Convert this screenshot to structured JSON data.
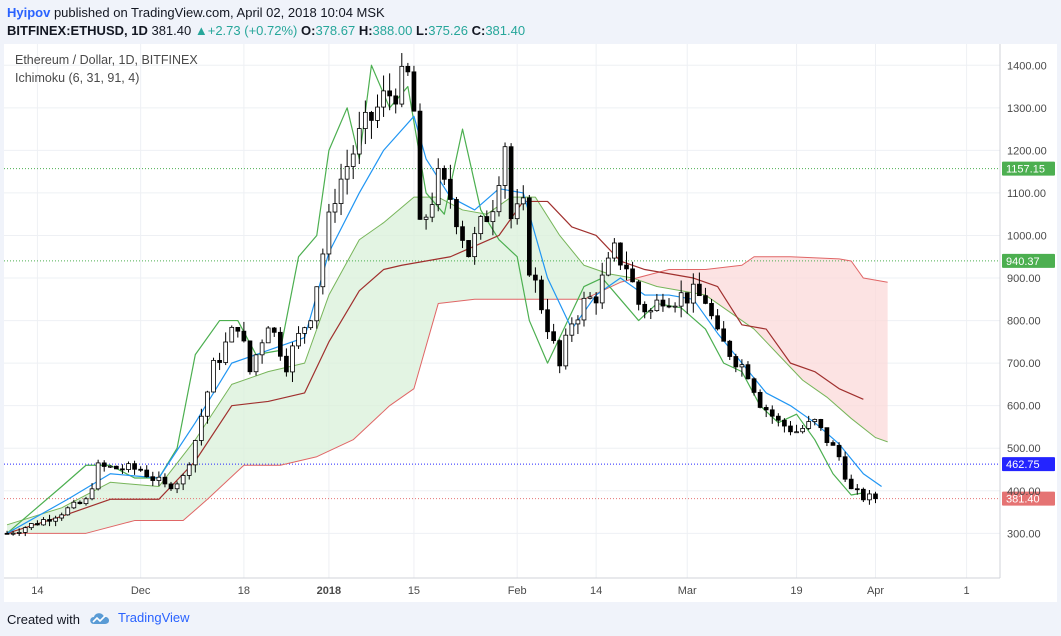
{
  "header": {
    "author": "Hyipov",
    "published_text": " published on TradingView.com, April 02, 2018 10:04 MSK",
    "symbol": "BITFINEX:ETHUSD, 1D",
    "last": "381.40",
    "change": "+2.73 (+0.72%)",
    "o_label": "O:",
    "o": "378.67",
    "h_label": "H:",
    "h": "388.00",
    "l_label": "L:",
    "l": "375.26",
    "c_label": "C:",
    "c": "381.40"
  },
  "legend": {
    "title": "Ethereum / Dollar, 1D, BITFINEX",
    "indicator": "Ichimoku (6, 31, 91, 4)"
  },
  "footer": {
    "created_with": "Created with",
    "brand": "TradingView"
  },
  "colors": {
    "tenkan": "#2196f3",
    "kijun": "#a0302e",
    "chikou": "#4caf50",
    "span_a": "#77b55a",
    "span_b": "#e06666",
    "cloud_bull": "#d9f0d9",
    "cloud_bear": "#fbdada",
    "level_green": "#4caf50",
    "level_blue": "#2424ff",
    "level_red": "#e57373"
  },
  "chart_data": {
    "type": "candlestick",
    "symbol": "ETHUSD",
    "timeframe": "1D",
    "y_ticks": [
      300,
      400,
      500,
      600,
      700,
      800,
      900,
      1000,
      1100,
      1200,
      1300,
      1400
    ],
    "y_tick_labels": [
      "300.00",
      "400.00",
      "500.00",
      "600.00",
      "700.00",
      "800.00",
      "900.00",
      "1000.00",
      "1100.00",
      "1200.00",
      "1300.00",
      "1400.00"
    ],
    "x_tick_labels": [
      {
        "label": "14",
        "day": 0,
        "bold": false
      },
      {
        "label": "Dec",
        "day": 17,
        "bold": false
      },
      {
        "label": "18",
        "day": 34,
        "bold": false
      },
      {
        "label": "2018",
        "day": 48,
        "bold": true
      },
      {
        "label": "15",
        "day": 62,
        "bold": false
      },
      {
        "label": "Feb",
        "day": 79,
        "bold": false
      },
      {
        "label": "14",
        "day": 92,
        "bold": false
      },
      {
        "label": "Mar",
        "day": 107,
        "bold": false
      },
      {
        "label": "19",
        "day": 125,
        "bold": false
      },
      {
        "label": "Apr",
        "day": 138,
        "bold": false
      },
      {
        "label": "1",
        "day": 153,
        "bold": false
      }
    ],
    "x_domain": [
      -5.5,
      158.5
    ],
    "y_domain": [
      195,
      1450
    ],
    "levels": [
      {
        "value": 1157.15,
        "label": "1157.15",
        "color": "#4caf50"
      },
      {
        "value": 940.37,
        "label": "940.37",
        "color": "#4caf50"
      },
      {
        "value": 462.75,
        "label": "462.75",
        "color": "#2424ff"
      },
      {
        "value": 381.4,
        "label": "381.40",
        "color": "#e57373"
      }
    ],
    "closes": [
      {
        "day": -5,
        "close": 300
      },
      {
        "day": 0,
        "close": 325
      },
      {
        "day": 8,
        "close": 375
      },
      {
        "day": 10,
        "close": 455
      },
      {
        "day": 17,
        "close": 450
      },
      {
        "day": 21,
        "close": 410
      },
      {
        "day": 24,
        "close": 430
      },
      {
        "day": 26,
        "close": 520
      },
      {
        "day": 29,
        "close": 690
      },
      {
        "day": 33,
        "close": 795
      },
      {
        "day": 35,
        "close": 680
      },
      {
        "day": 38,
        "close": 800
      },
      {
        "day": 41,
        "close": 700
      },
      {
        "day": 45,
        "close": 820
      },
      {
        "day": 49,
        "close": 1100
      },
      {
        "day": 53,
        "close": 1230
      },
      {
        "day": 57,
        "close": 1320
      },
      {
        "day": 61,
        "close": 1370
      },
      {
        "day": 62,
        "close": 1290
      },
      {
        "day": 63,
        "close": 1010
      },
      {
        "day": 66,
        "close": 1130
      },
      {
        "day": 68,
        "close": 1090
      },
      {
        "day": 71,
        "close": 960
      },
      {
        "day": 75,
        "close": 1080
      },
      {
        "day": 77,
        "close": 1220
      },
      {
        "day": 78,
        "close": 1040
      },
      {
        "day": 80,
        "close": 1060
      },
      {
        "day": 81,
        "close": 930
      },
      {
        "day": 84,
        "close": 790
      },
      {
        "day": 86,
        "close": 690
      },
      {
        "day": 88,
        "close": 800
      },
      {
        "day": 90,
        "close": 840
      },
      {
        "day": 92,
        "close": 860
      },
      {
        "day": 95,
        "close": 960
      },
      {
        "day": 97,
        "close": 930
      },
      {
        "day": 99,
        "close": 840
      },
      {
        "day": 101,
        "close": 820
      },
      {
        "day": 103,
        "close": 860
      },
      {
        "day": 105,
        "close": 855
      },
      {
        "day": 108,
        "close": 860
      },
      {
        "day": 110,
        "close": 850
      },
      {
        "day": 112,
        "close": 760
      },
      {
        "day": 115,
        "close": 710
      },
      {
        "day": 117,
        "close": 680
      },
      {
        "day": 119,
        "close": 610
      },
      {
        "day": 122,
        "close": 560
      },
      {
        "day": 125,
        "close": 540
      },
      {
        "day": 128,
        "close": 560
      },
      {
        "day": 130,
        "close": 520
      },
      {
        "day": 132,
        "close": 480
      },
      {
        "day": 134,
        "close": 400
      },
      {
        "day": 136,
        "close": 385
      },
      {
        "day": 138,
        "close": 381.4
      }
    ],
    "ichimoku": {
      "tenkan": [
        {
          "day": -5,
          "value": 300
        },
        {
          "day": 5,
          "value": 380
        },
        {
          "day": 12,
          "value": 440
        },
        {
          "day": 20,
          "value": 430
        },
        {
          "day": 26,
          "value": 560
        },
        {
          "day": 32,
          "value": 700
        },
        {
          "day": 38,
          "value": 730
        },
        {
          "day": 44,
          "value": 760
        },
        {
          "day": 48,
          "value": 960
        },
        {
          "day": 53,
          "value": 1100
        },
        {
          "day": 57,
          "value": 1200
        },
        {
          "day": 62,
          "value": 1280
        },
        {
          "day": 64,
          "value": 1180
        },
        {
          "day": 68,
          "value": 1090
        },
        {
          "day": 72,
          "value": 1060
        },
        {
          "day": 76,
          "value": 1110
        },
        {
          "day": 80,
          "value": 1100
        },
        {
          "day": 84,
          "value": 900
        },
        {
          "day": 88,
          "value": 780
        },
        {
          "day": 92,
          "value": 860
        },
        {
          "day": 96,
          "value": 900
        },
        {
          "day": 100,
          "value": 860
        },
        {
          "day": 104,
          "value": 860
        },
        {
          "day": 108,
          "value": 850
        },
        {
          "day": 112,
          "value": 770
        },
        {
          "day": 116,
          "value": 700
        },
        {
          "day": 120,
          "value": 630
        },
        {
          "day": 124,
          "value": 600
        },
        {
          "day": 128,
          "value": 560
        },
        {
          "day": 132,
          "value": 510
        },
        {
          "day": 136,
          "value": 440
        },
        {
          "day": 139,
          "value": 410
        }
      ],
      "kijun": [
        {
          "day": -5,
          "value": 300
        },
        {
          "day": 4,
          "value": 340
        },
        {
          "day": 12,
          "value": 380
        },
        {
          "day": 20,
          "value": 380
        },
        {
          "day": 26,
          "value": 470
        },
        {
          "day": 32,
          "value": 600
        },
        {
          "day": 38,
          "value": 610
        },
        {
          "day": 44,
          "value": 630
        },
        {
          "day": 48,
          "value": 750
        },
        {
          "day": 53,
          "value": 870
        },
        {
          "day": 57,
          "value": 920
        },
        {
          "day": 60,
          "value": 930
        },
        {
          "day": 68,
          "value": 950
        },
        {
          "day": 76,
          "value": 1000
        },
        {
          "day": 80,
          "value": 1080
        },
        {
          "day": 84,
          "value": 1080
        },
        {
          "day": 88,
          "value": 1020
        },
        {
          "day": 92,
          "value": 1000
        },
        {
          "day": 96,
          "value": 940
        },
        {
          "day": 100,
          "value": 920
        },
        {
          "day": 108,
          "value": 900
        },
        {
          "day": 112,
          "value": 880
        },
        {
          "day": 116,
          "value": 790
        },
        {
          "day": 120,
          "value": 780
        },
        {
          "day": 124,
          "value": 700
        },
        {
          "day": 128,
          "value": 680
        },
        {
          "day": 132,
          "value": 640
        },
        {
          "day": 136,
          "value": 615
        }
      ],
      "chikou": [
        {
          "day": -5,
          "value": 300
        },
        {
          "day": 4,
          "value": 410
        },
        {
          "day": 8,
          "value": 460
        },
        {
          "day": 12,
          "value": 460
        },
        {
          "day": 16,
          "value": 430
        },
        {
          "day": 20,
          "value": 430
        },
        {
          "day": 23,
          "value": 500
        },
        {
          "day": 26,
          "value": 720
        },
        {
          "day": 30,
          "value": 800
        },
        {
          "day": 33,
          "value": 800
        },
        {
          "day": 36,
          "value": 720
        },
        {
          "day": 40,
          "value": 730
        },
        {
          "day": 43,
          "value": 950
        },
        {
          "day": 46,
          "value": 1000
        },
        {
          "day": 48,
          "value": 1200
        },
        {
          "day": 51,
          "value": 1300
        },
        {
          "day": 53,
          "value": 1180
        },
        {
          "day": 55,
          "value": 1400
        },
        {
          "day": 58,
          "value": 1300
        },
        {
          "day": 61,
          "value": 1350
        },
        {
          "day": 64,
          "value": 1100
        },
        {
          "day": 67,
          "value": 1050
        },
        {
          "day": 70,
          "value": 1250
        },
        {
          "day": 73,
          "value": 1060
        },
        {
          "day": 76,
          "value": 990
        },
        {
          "day": 79,
          "value": 950
        },
        {
          "day": 81,
          "value": 800
        },
        {
          "day": 84,
          "value": 700
        },
        {
          "day": 87,
          "value": 790
        },
        {
          "day": 90,
          "value": 880
        },
        {
          "day": 93,
          "value": 900
        },
        {
          "day": 96,
          "value": 850
        },
        {
          "day": 99,
          "value": 800
        },
        {
          "day": 102,
          "value": 840
        },
        {
          "day": 106,
          "value": 830
        },
        {
          "day": 110,
          "value": 780
        },
        {
          "day": 113,
          "value": 700
        },
        {
          "day": 116,
          "value": 680
        },
        {
          "day": 119,
          "value": 600
        },
        {
          "day": 122,
          "value": 560
        },
        {
          "day": 125,
          "value": 580
        },
        {
          "day": 128,
          "value": 520
        },
        {
          "day": 131,
          "value": 440
        },
        {
          "day": 134,
          "value": 390
        },
        {
          "day": 136,
          "value": 395
        }
      ],
      "span_a": [
        {
          "day": -5,
          "value": 320
        },
        {
          "day": 4,
          "value": 360
        },
        {
          "day": 12,
          "value": 420
        },
        {
          "day": 20,
          "value": 410
        },
        {
          "day": 26,
          "value": 520
        },
        {
          "day": 32,
          "value": 650
        },
        {
          "day": 38,
          "value": 680
        },
        {
          "day": 44,
          "value": 700
        },
        {
          "day": 48,
          "value": 860
        },
        {
          "day": 53,
          "value": 990
        },
        {
          "day": 57,
          "value": 1030
        },
        {
          "day": 62,
          "value": 1090
        },
        {
          "day": 66,
          "value": 1090
        },
        {
          "day": 70,
          "value": 1060
        },
        {
          "day": 74,
          "value": 1050
        },
        {
          "day": 78,
          "value": 1090
        },
        {
          "day": 82,
          "value": 1090
        },
        {
          "day": 86,
          "value": 1000
        },
        {
          "day": 90,
          "value": 930
        },
        {
          "day": 94,
          "value": 910
        },
        {
          "day": 98,
          "value": 900
        },
        {
          "day": 102,
          "value": 880
        },
        {
          "day": 106,
          "value": 870
        },
        {
          "day": 110,
          "value": 860
        },
        {
          "day": 114,
          "value": 820
        },
        {
          "day": 118,
          "value": 780
        },
        {
          "day": 122,
          "value": 720
        },
        {
          "day": 126,
          "value": 660
        },
        {
          "day": 130,
          "value": 620
        },
        {
          "day": 134,
          "value": 570
        },
        {
          "day": 138,
          "value": 525
        },
        {
          "day": 140,
          "value": 515
        }
      ],
      "span_b": [
        {
          "day": -5,
          "value": 300
        },
        {
          "day": 8,
          "value": 300
        },
        {
          "day": 16,
          "value": 330
        },
        {
          "day": 24,
          "value": 330
        },
        {
          "day": 28,
          "value": 380
        },
        {
          "day": 34,
          "value": 460
        },
        {
          "day": 40,
          "value": 460
        },
        {
          "day": 46,
          "value": 480
        },
        {
          "day": 52,
          "value": 520
        },
        {
          "day": 58,
          "value": 600
        },
        {
          "day": 62,
          "value": 640
        },
        {
          "day": 66,
          "value": 840
        },
        {
          "day": 72,
          "value": 850
        },
        {
          "day": 80,
          "value": 850
        },
        {
          "day": 90,
          "value": 850
        },
        {
          "day": 96,
          "value": 890
        },
        {
          "day": 104,
          "value": 920
        },
        {
          "day": 110,
          "value": 920
        },
        {
          "day": 116,
          "value": 930
        },
        {
          "day": 118,
          "value": 950
        },
        {
          "day": 124,
          "value": 950
        },
        {
          "day": 132,
          "value": 945
        },
        {
          "day": 134,
          "value": 940
        },
        {
          "day": 136,
          "value": 900
        },
        {
          "day": 140,
          "value": 890
        }
      ]
    }
  }
}
